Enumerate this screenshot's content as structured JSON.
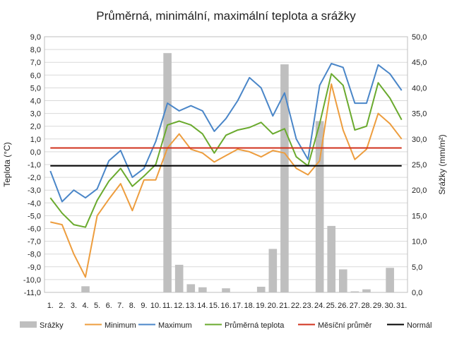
{
  "chart_data": {
    "type": "line",
    "title": "Průměrná, minimální, maximální teplota a srážky",
    "ylabel": "Teplota (°C)",
    "y2label": "Srážky (mm/m²)",
    "ylim": [
      -11,
      9
    ],
    "y2lim": [
      0,
      50
    ],
    "yticks": [
      "9,0",
      "8,0",
      "7,0",
      "6,0",
      "5,0",
      "4,0",
      "3,0",
      "2,0",
      "1,0",
      "0,0",
      "-1,0",
      "-2,0",
      "-3,0",
      "-4,0",
      "-5,0",
      "-6,0",
      "-7,0",
      "-8,0",
      "-9,0",
      "-10,0",
      "-11,0"
    ],
    "y2ticks": [
      "50,0",
      "45,0",
      "40,0",
      "35,0",
      "30,0",
      "25,0",
      "20,0",
      "15,0",
      "10,0",
      "5,0",
      "0,0"
    ],
    "categories": [
      "1.",
      "2.",
      "3.",
      "4.",
      "5.",
      "6.",
      "7.",
      "8.",
      "9.",
      "10.",
      "11.",
      "12.",
      "13.",
      "14.",
      "15.",
      "16.",
      "17.",
      "18.",
      "19.",
      "20.",
      "21.",
      "22.",
      "23.",
      "24.",
      "25.",
      "26.",
      "27.",
      "28.",
      "29.",
      "30.",
      "31."
    ],
    "legend_position": "bottom",
    "grid": true,
    "series": [
      {
        "name": "Srážky",
        "type": "bar",
        "axis": "right",
        "color": "#bfbfbf",
        "values": [
          0,
          0,
          0,
          1.2,
          0,
          0,
          0,
          0,
          0,
          0,
          46.8,
          5.4,
          1.6,
          1.0,
          0,
          0.8,
          0,
          0,
          1.1,
          8.5,
          44.6,
          0,
          0,
          33.5,
          13.0,
          4.5,
          0.2,
          0.6,
          0,
          4.8,
          0
        ]
      },
      {
        "name": "Minimum",
        "type": "line",
        "axis": "left",
        "color": "#ed9d3e",
        "values": [
          -5.5,
          -5.7,
          -8.0,
          -9.8,
          -5.0,
          -3.7,
          -2.5,
          -4.6,
          -2.2,
          -2.2,
          0.3,
          1.4,
          0.2,
          -0.1,
          -0.8,
          -0.3,
          0.2,
          0.0,
          -0.4,
          0.1,
          -0.1,
          -1.3,
          -1.8,
          -0.7,
          5.3,
          1.7,
          -0.6,
          0.2,
          3.0,
          2.2,
          1.0
        ]
      },
      {
        "name": "Maximum",
        "type": "line",
        "axis": "left",
        "color": "#4a86c8",
        "values": [
          -1.5,
          -3.9,
          -3.0,
          -3.6,
          -2.9,
          -0.7,
          0.1,
          -2.0,
          -1.3,
          0.8,
          3.8,
          3.2,
          3.6,
          3.2,
          1.6,
          2.6,
          4.0,
          5.8,
          5.0,
          2.8,
          4.6,
          1.0,
          -0.6,
          5.2,
          6.9,
          6.6,
          3.8,
          3.8,
          6.8,
          6.1,
          4.8
        ]
      },
      {
        "name": "Průměrná teplota",
        "type": "line",
        "axis": "left",
        "color": "#6aaa2e",
        "values": [
          -3.6,
          -4.8,
          -5.7,
          -5.9,
          -3.8,
          -2.3,
          -1.3,
          -2.7,
          -1.9,
          -1.0,
          2.1,
          2.4,
          2.1,
          1.4,
          -0.1,
          1.3,
          1.7,
          1.9,
          2.3,
          1.4,
          1.8,
          -0.4,
          -1.1,
          2.2,
          6.1,
          5.2,
          1.7,
          2.0,
          5.4,
          4.2,
          2.5
        ]
      },
      {
        "name": "Měsíční průměr",
        "type": "line",
        "axis": "left",
        "color": "#d0311c",
        "constant": 0.3
      },
      {
        "name": "Normál",
        "type": "line",
        "axis": "left",
        "color": "#000000",
        "constant": -1.1
      }
    ]
  }
}
